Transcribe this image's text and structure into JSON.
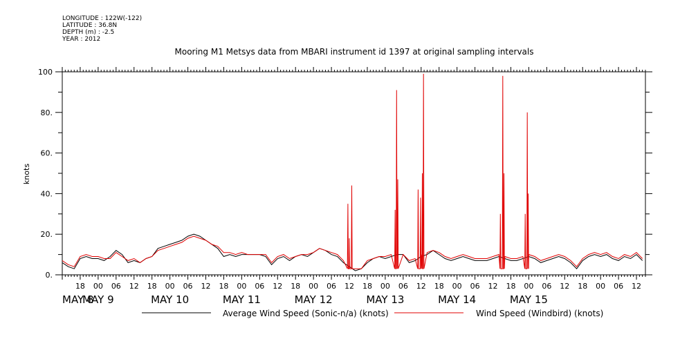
{
  "header": {
    "longitude": "LONGITUDE : 122W(-122)",
    "latitude": "LATITUDE : 36.8N",
    "depth": "DEPTH (m) : -2.5",
    "year": "YEAR : 2012"
  },
  "chart_data": {
    "type": "line",
    "title": "Mooring M1 Metsys data from MBARI instrument id 1397 at original sampling intervals",
    "ylabel": "knots",
    "xlabel": "",
    "ylim": [
      0,
      100
    ],
    "xlim_hours_from_may8_00": [
      12,
      207
    ],
    "y_ticks": [
      "0.",
      "20.",
      "40.",
      "60.",
      "80.",
      "100"
    ],
    "hour_ticks": [
      "18",
      "00",
      "06",
      "12",
      "18",
      "00",
      "06",
      "12",
      "18",
      "00",
      "06",
      "12",
      "18",
      "00",
      "06",
      "12",
      "18",
      "00",
      "06",
      "12",
      "18",
      "00",
      "06",
      "12",
      "18",
      "00",
      "06",
      "12",
      "18",
      "00",
      "06",
      "12"
    ],
    "day_labels": [
      "MAY  8",
      "MAY  9",
      "MAY 10",
      "MAY 11",
      "MAY 12",
      "MAY 13",
      "MAY 14",
      "MAY 15"
    ],
    "grid": false,
    "legend_position": "bottom",
    "series": [
      {
        "name": "Average Wind Speed (Sonic-n/a) (knots)",
        "color": "#000000",
        "x": [
          12,
          14,
          16,
          18,
          20,
          22,
          24,
          26,
          28,
          30,
          32,
          34,
          36,
          38,
          40,
          42,
          44,
          46,
          48,
          50,
          52,
          54,
          56,
          58,
          60,
          62,
          64,
          66,
          68,
          70,
          72,
          74,
          76,
          78,
          80,
          82,
          84,
          86,
          88,
          90,
          92,
          94,
          96,
          98,
          100,
          102,
          104,
          106,
          108,
          110,
          112,
          114,
          116,
          118,
          120,
          122,
          124,
          126,
          128,
          130,
          132,
          134,
          136,
          138,
          140,
          142,
          144,
          146,
          148,
          150,
          152,
          154,
          156,
          158,
          160,
          162,
          164,
          166,
          168,
          170,
          172,
          174,
          176,
          178,
          180,
          182,
          184,
          186,
          188,
          190,
          192,
          194,
          196,
          198,
          200,
          202,
          204,
          206
        ],
        "y": [
          6,
          4,
          3,
          8,
          9,
          8,
          8,
          7,
          9,
          12,
          10,
          6,
          7,
          6,
          8,
          9,
          13,
          14,
          15,
          16,
          17,
          19,
          20,
          19,
          17,
          15,
          13,
          9,
          10,
          9,
          10,
          10,
          10,
          10,
          9,
          5,
          8,
          9,
          7,
          9,
          10,
          9,
          11,
          13,
          12,
          10,
          9,
          6,
          4,
          2,
          3,
          6,
          8,
          9,
          8,
          9,
          10,
          10,
          6,
          7,
          9,
          10,
          12,
          10,
          8,
          7,
          8,
          9,
          8,
          7,
          7,
          7,
          8,
          9,
          8,
          7,
          7,
          8,
          9,
          8,
          6,
          7,
          8,
          9,
          8,
          6,
          3,
          7,
          9,
          10,
          9,
          10,
          8,
          7,
          9,
          8,
          10,
          7
        ]
      },
      {
        "name": "Wind Speed (Windbird) (knots)",
        "color": "#e00000",
        "x": [
          12,
          14,
          16,
          18,
          20,
          22,
          24,
          26,
          28,
          30,
          32,
          34,
          36,
          38,
          40,
          42,
          44,
          46,
          48,
          50,
          52,
          54,
          56,
          58,
          60,
          62,
          64,
          66,
          68,
          70,
          72,
          74,
          76,
          78,
          80,
          82,
          84,
          86,
          88,
          90,
          92,
          94,
          96,
          98,
          100,
          102,
          104,
          106,
          108,
          110,
          112,
          114,
          116,
          118,
          120,
          122,
          124,
          126,
          128,
          130,
          132,
          134,
          136,
          138,
          140,
          142,
          144,
          146,
          148,
          150,
          152,
          154,
          156,
          158,
          160,
          162,
          164,
          166,
          168,
          170,
          172,
          174,
          176,
          178,
          180,
          182,
          184,
          186,
          188,
          190,
          192,
          194,
          196,
          198,
          200,
          202,
          204,
          206
        ],
        "y": [
          7,
          5,
          4,
          9,
          10,
          9,
          9,
          8,
          8,
          11,
          9,
          7,
          8,
          6,
          8,
          9,
          12,
          13,
          14,
          15,
          16,
          18,
          19,
          18,
          17,
          15,
          14,
          11,
          11,
          10,
          11,
          10,
          10,
          10,
          10,
          6,
          9,
          10,
          8,
          9,
          10,
          10,
          11,
          13,
          12,
          11,
          10,
          7,
          4,
          3,
          3,
          7,
          8,
          9,
          9,
          10,
          11,
          10,
          7,
          8,
          10,
          11,
          12,
          11,
          9,
          8,
          9,
          10,
          9,
          8,
          8,
          8,
          9,
          10,
          9,
          8,
          8,
          9,
          10,
          9,
          7,
          8,
          9,
          10,
          9,
          7,
          4,
          8,
          10,
          11,
          10,
          11,
          9,
          8,
          10,
          9,
          11,
          8
        ],
        "spikes": [
          {
            "x": 107.5,
            "y": 35
          },
          {
            "x": 108.8,
            "y": 44
          },
          {
            "x": 108.0,
            "y": 18
          },
          {
            "x": 123.3,
            "y": 32
          },
          {
            "x": 123.8,
            "y": 91
          },
          {
            "x": 124.2,
            "y": 47
          },
          {
            "x": 131.0,
            "y": 42
          },
          {
            "x": 131.8,
            "y": 38
          },
          {
            "x": 132.4,
            "y": 50
          },
          {
            "x": 132.8,
            "y": 99
          },
          {
            "x": 158.5,
            "y": 30
          },
          {
            "x": 159.3,
            "y": 98
          },
          {
            "x": 159.7,
            "y": 50
          },
          {
            "x": 166.8,
            "y": 30
          },
          {
            "x": 167.5,
            "y": 80
          },
          {
            "x": 167.8,
            "y": 40
          }
        ]
      }
    ]
  }
}
